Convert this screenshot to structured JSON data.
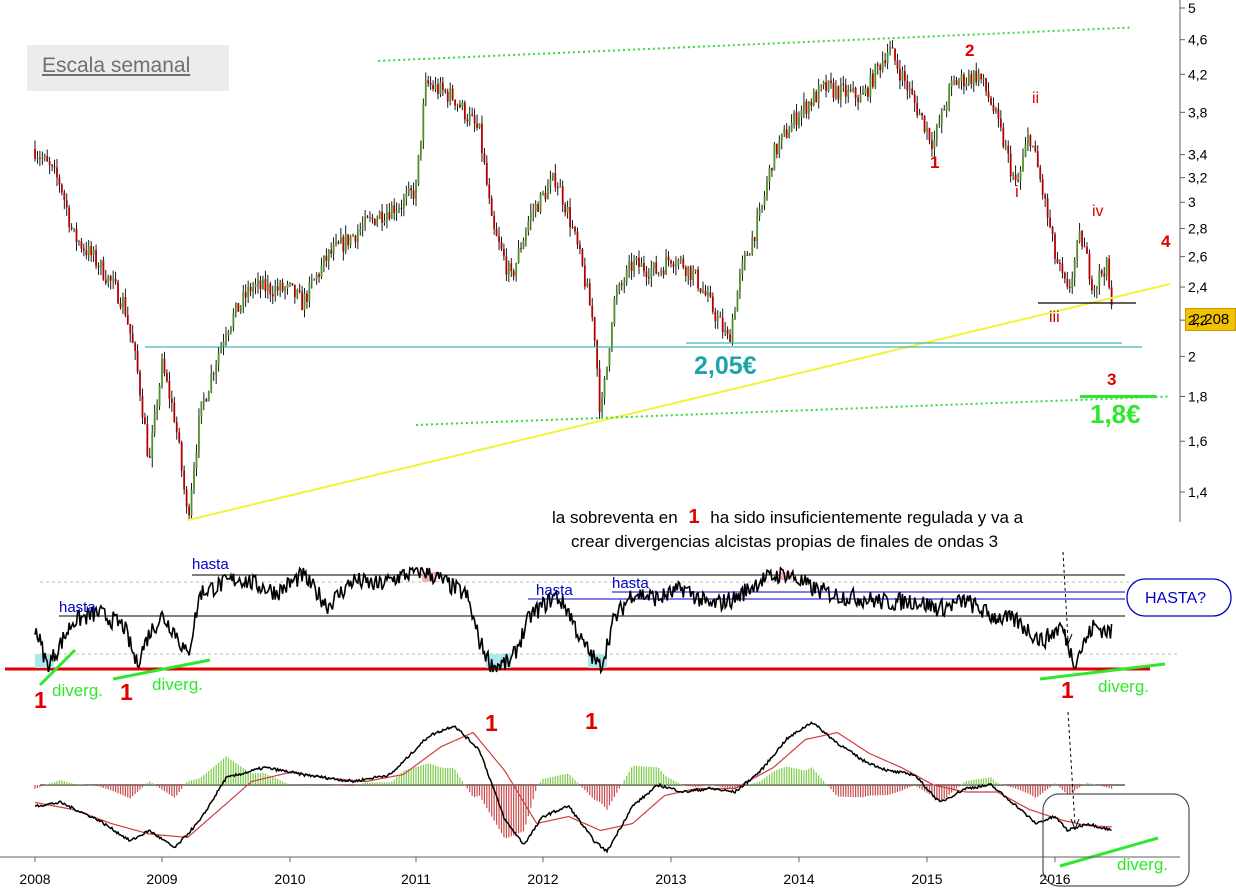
{
  "legend": {
    "label": "Escala semanal"
  },
  "price_badge": "2,208",
  "chart_data": [
    {
      "type": "candlestick",
      "scale": "log",
      "y_ticks": [
        "5",
        "4,6",
        "4,2",
        "3,8",
        "3,4",
        "3,2",
        "3",
        "2,8",
        "2,6",
        "2,4",
        "2,2",
        "2",
        "1,8",
        "1,6",
        "1,4"
      ],
      "x_ticks": [
        "2008",
        "2009",
        "2010",
        "2011",
        "2012",
        "2013",
        "2014",
        "2015",
        "2016"
      ],
      "last_price": 2.208,
      "price_path": [
        [
          2008.0,
          3.45
        ],
        [
          2008.2,
          3.15
        ],
        [
          2008.3,
          2.75
        ],
        [
          2008.5,
          2.55
        ],
        [
          2008.7,
          2.3
        ],
        [
          2008.8,
          1.95
        ],
        [
          2008.9,
          1.5
        ],
        [
          2009.0,
          1.95
        ],
        [
          2009.1,
          1.7
        ],
        [
          2009.2,
          1.3
        ],
        [
          2009.3,
          1.72
        ],
        [
          2009.5,
          2.15
        ],
        [
          2009.7,
          2.4
        ],
        [
          2010.0,
          2.38
        ],
        [
          2010.1,
          2.3
        ],
        [
          2010.3,
          2.6
        ],
        [
          2010.5,
          2.75
        ],
        [
          2010.7,
          2.9
        ],
        [
          2010.9,
          3.0
        ],
        [
          2011.0,
          3.1
        ],
        [
          2011.08,
          4.1
        ],
        [
          2011.3,
          3.95
        ],
        [
          2011.5,
          3.6
        ],
        [
          2011.6,
          2.8
        ],
        [
          2011.75,
          2.45
        ],
        [
          2011.9,
          2.9
        ],
        [
          2012.1,
          3.2
        ],
        [
          2012.2,
          2.9
        ],
        [
          2012.3,
          2.55
        ],
        [
          2012.4,
          2.15
        ],
        [
          2012.45,
          1.7
        ],
        [
          2012.5,
          1.95
        ],
        [
          2012.55,
          2.3
        ],
        [
          2012.7,
          2.55
        ],
        [
          2012.9,
          2.5
        ],
        [
          2013.0,
          2.6
        ],
        [
          2013.1,
          2.55
        ],
        [
          2013.2,
          2.45
        ],
        [
          2013.45,
          2.08
        ],
        [
          2013.55,
          2.5
        ],
        [
          2013.7,
          2.9
        ],
        [
          2013.8,
          3.4
        ],
        [
          2014.0,
          3.8
        ],
        [
          2014.2,
          4.05
        ],
        [
          2014.5,
          3.95
        ],
        [
          2014.7,
          4.5
        ],
        [
          2014.9,
          3.9
        ],
        [
          2015.05,
          3.5
        ],
        [
          2015.2,
          4.1
        ],
        [
          2015.4,
          4.2
        ],
        [
          2015.5,
          3.9
        ],
        [
          2015.7,
          3.1
        ],
        [
          2015.8,
          3.6
        ],
        [
          2015.9,
          3.1
        ],
        [
          2016.0,
          2.6
        ],
        [
          2016.1,
          2.35
        ],
        [
          2016.2,
          2.75
        ],
        [
          2016.3,
          2.4
        ],
        [
          2016.4,
          2.55
        ],
        [
          2016.45,
          2.2
        ]
      ],
      "levels": [
        {
          "label": "2,05€",
          "value": 2.05
        },
        {
          "label": "1,8€",
          "value": 1.8
        }
      ],
      "trend_lines": [
        {
          "type": "support",
          "from": [
            2009.2,
            1.3
          ],
          "to": [
            2016.9,
            2.42
          ]
        },
        {
          "type": "channel_top",
          "from": [
            2010.7,
            4.35
          ],
          "to": [
            2016.6,
            4.75
          ]
        },
        {
          "type": "channel_bottom",
          "from": [
            2011.0,
            1.67
          ],
          "to": [
            2016.9,
            1.8
          ]
        }
      ],
      "wave_labels": [
        "1",
        "2",
        "i",
        "ii",
        "iii",
        "iv",
        "4",
        "3"
      ],
      "annotations": [
        "la sobreventa en",
        "1",
        "ha sido insuficientemente regulada y va a",
        "crear divergencias alcistas propias de finales de ondas 3"
      ]
    },
    {
      "type": "line",
      "indicator": "oscillator",
      "labels": [
        "hasta",
        "hasta",
        "hasta",
        "hasta",
        "HASTA?",
        "diverg.",
        "diverg.",
        "diverg."
      ],
      "bottom_marks": [
        "1",
        "1",
        "1",
        "1",
        "1"
      ],
      "path": [
        [
          2008.0,
          0.45
        ],
        [
          2008.1,
          0.05
        ],
        [
          2008.3,
          0.5
        ],
        [
          2008.5,
          0.58
        ],
        [
          2008.7,
          0.45
        ],
        [
          2008.8,
          0.08
        ],
        [
          2008.9,
          0.38
        ],
        [
          2009.0,
          0.55
        ],
        [
          2009.1,
          0.4
        ],
        [
          2009.2,
          0.15
        ],
        [
          2009.3,
          0.78
        ],
        [
          2009.6,
          0.92
        ],
        [
          2009.9,
          0.78
        ],
        [
          2010.1,
          0.95
        ],
        [
          2010.3,
          0.65
        ],
        [
          2010.5,
          0.9
        ],
        [
          2010.7,
          0.85
        ],
        [
          2010.9,
          0.95
        ],
        [
          2011.05,
          1.0
        ],
        [
          2011.2,
          0.9
        ],
        [
          2011.4,
          0.75
        ],
        [
          2011.5,
          0.3
        ],
        [
          2011.6,
          0.05
        ],
        [
          2011.75,
          0.1
        ],
        [
          2011.9,
          0.55
        ],
        [
          2012.1,
          0.75
        ],
        [
          2012.2,
          0.6
        ],
        [
          2012.3,
          0.3
        ],
        [
          2012.45,
          0.04
        ],
        [
          2012.55,
          0.5
        ],
        [
          2012.7,
          0.78
        ],
        [
          2012.9,
          0.72
        ],
        [
          2013.1,
          0.82
        ],
        [
          2013.3,
          0.65
        ],
        [
          2013.5,
          0.72
        ],
        [
          2013.7,
          0.9
        ],
        [
          2013.9,
          0.97
        ],
        [
          2014.1,
          0.82
        ],
        [
          2014.3,
          0.75
        ],
        [
          2014.5,
          0.72
        ],
        [
          2014.7,
          0.68
        ],
        [
          2014.9,
          0.7
        ],
        [
          2015.1,
          0.62
        ],
        [
          2015.3,
          0.7
        ],
        [
          2015.5,
          0.55
        ],
        [
          2015.7,
          0.5
        ],
        [
          2015.9,
          0.3
        ],
        [
          2016.05,
          0.45
        ],
        [
          2016.15,
          0.1
        ],
        [
          2016.3,
          0.45
        ],
        [
          2016.45,
          0.38
        ]
      ]
    },
    {
      "type": "line",
      "indicator": "macd",
      "labels": [
        "diverg."
      ],
      "main_path": [
        [
          2008.0,
          -0.3
        ],
        [
          2008.2,
          -0.25
        ],
        [
          2008.5,
          -0.5
        ],
        [
          2008.75,
          -0.8
        ],
        [
          2008.9,
          -0.65
        ],
        [
          2009.1,
          -0.9
        ],
        [
          2009.3,
          -0.5
        ],
        [
          2009.5,
          0.1
        ],
        [
          2009.8,
          0.25
        ],
        [
          2010.1,
          0.15
        ],
        [
          2010.3,
          0.1
        ],
        [
          2010.5,
          0.05
        ],
        [
          2010.8,
          0.15
        ],
        [
          2011.1,
          0.7
        ],
        [
          2011.3,
          0.85
        ],
        [
          2011.5,
          0.5
        ],
        [
          2011.7,
          -0.5
        ],
        [
          2011.85,
          -0.85
        ],
        [
          2012.0,
          -0.45
        ],
        [
          2012.2,
          -0.3
        ],
        [
          2012.4,
          -0.8
        ],
        [
          2012.5,
          -0.95
        ],
        [
          2012.7,
          -0.3
        ],
        [
          2012.9,
          0.0
        ],
        [
          2013.1,
          -0.1
        ],
        [
          2013.3,
          -0.05
        ],
        [
          2013.5,
          -0.1
        ],
        [
          2013.7,
          0.2
        ],
        [
          2013.9,
          0.65
        ],
        [
          2014.1,
          0.9
        ],
        [
          2014.3,
          0.6
        ],
        [
          2014.5,
          0.35
        ],
        [
          2014.7,
          0.2
        ],
        [
          2014.9,
          0.15
        ],
        [
          2015.1,
          -0.25
        ],
        [
          2015.3,
          -0.05
        ],
        [
          2015.5,
          0.0
        ],
        [
          2015.7,
          -0.3
        ],
        [
          2015.85,
          -0.55
        ],
        [
          2016.0,
          -0.45
        ],
        [
          2016.1,
          -0.65
        ],
        [
          2016.25,
          -0.55
        ],
        [
          2016.45,
          -0.65
        ]
      ],
      "signal_path": [
        [
          2008.0,
          -0.25
        ],
        [
          2008.3,
          -0.35
        ],
        [
          2008.6,
          -0.55
        ],
        [
          2008.9,
          -0.7
        ],
        [
          2009.2,
          -0.75
        ],
        [
          2009.45,
          -0.35
        ],
        [
          2009.7,
          0.05
        ],
        [
          2010.0,
          0.18
        ],
        [
          2010.3,
          0.1
        ],
        [
          2010.6,
          0.05
        ],
        [
          2010.9,
          0.15
        ],
        [
          2011.2,
          0.55
        ],
        [
          2011.45,
          0.75
        ],
        [
          2011.7,
          0.2
        ],
        [
          2011.95,
          -0.55
        ],
        [
          2012.2,
          -0.45
        ],
        [
          2012.45,
          -0.65
        ],
        [
          2012.7,
          -0.55
        ],
        [
          2012.95,
          -0.15
        ],
        [
          2013.2,
          -0.05
        ],
        [
          2013.5,
          -0.05
        ],
        [
          2013.8,
          0.25
        ],
        [
          2014.05,
          0.65
        ],
        [
          2014.3,
          0.75
        ],
        [
          2014.55,
          0.45
        ],
        [
          2014.8,
          0.25
        ],
        [
          2015.05,
          0.0
        ],
        [
          2015.3,
          -0.1
        ],
        [
          2015.55,
          -0.1
        ],
        [
          2015.8,
          -0.35
        ],
        [
          2016.05,
          -0.5
        ],
        [
          2016.25,
          -0.58
        ],
        [
          2016.45,
          -0.6
        ]
      ]
    }
  ]
}
